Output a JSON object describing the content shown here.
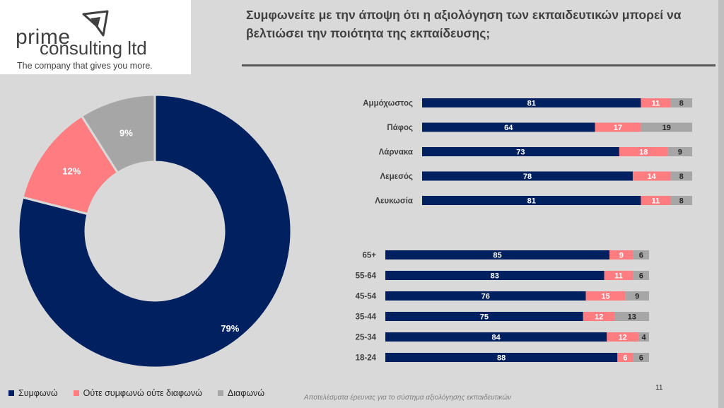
{
  "logo": {
    "line1": "prime",
    "line2": "consulting ltd",
    "tagline": "The company that gives you more."
  },
  "title": "Συμφωνείτε με την άποψη ότι η αξιολόγηση των εκπαιδευτικών μπορεί να βελτιώσει την ποιότητα της εκπαίδευσης;",
  "colors": {
    "agree": "#002060",
    "neutral": "#ff7c80",
    "disagree": "#a6a6a6"
  },
  "legend": [
    "Συμφωνώ",
    "Ούτε συμφωνώ ούτε διαφωνώ",
    "Διαφωνώ"
  ],
  "footnote": "Αποτελέσματα έρευνας για το σύστημα αξιολόγησης εκπαιδευτικών",
  "page_number": "11",
  "chart_data": [
    {
      "type": "pie",
      "variant": "donut",
      "categories": [
        "Συμφωνώ",
        "Ούτε συμφωνώ ούτε διαφωνώ",
        "Διαφωνώ"
      ],
      "values": [
        79,
        12,
        9
      ],
      "labels": [
        "79%",
        "12%",
        "9%"
      ],
      "colors": [
        "#002060",
        "#ff7c80",
        "#a6a6a6"
      ]
    },
    {
      "type": "bar",
      "orientation": "horizontal",
      "stacked": true,
      "categories": [
        "Αμμόχωστος",
        "Πάφος",
        "Λάρνακα",
        "Λεμεσός",
        "Λευκωσία"
      ],
      "series": [
        {
          "name": "Συμφωνώ",
          "values": [
            81,
            64,
            73,
            78,
            81
          ]
        },
        {
          "name": "Ούτε συμφωνώ ούτε διαφωνώ",
          "values": [
            11,
            17,
            18,
            14,
            11
          ]
        },
        {
          "name": "Διαφωνώ",
          "values": [
            8,
            19,
            9,
            8,
            8
          ]
        }
      ]
    },
    {
      "type": "bar",
      "orientation": "horizontal",
      "stacked": true,
      "categories": [
        "65+",
        "55-64",
        "45-54",
        "35-44",
        "25-34",
        "18-24"
      ],
      "series": [
        {
          "name": "Συμφωνώ",
          "values": [
            85,
            83,
            76,
            75,
            84,
            88
          ]
        },
        {
          "name": "Ούτε συμφωνώ ούτε διαφωνώ",
          "values": [
            9,
            11,
            15,
            12,
            12,
            6
          ]
        },
        {
          "name": "Διαφωνώ",
          "values": [
            6,
            6,
            9,
            13,
            4,
            6
          ]
        }
      ]
    }
  ]
}
